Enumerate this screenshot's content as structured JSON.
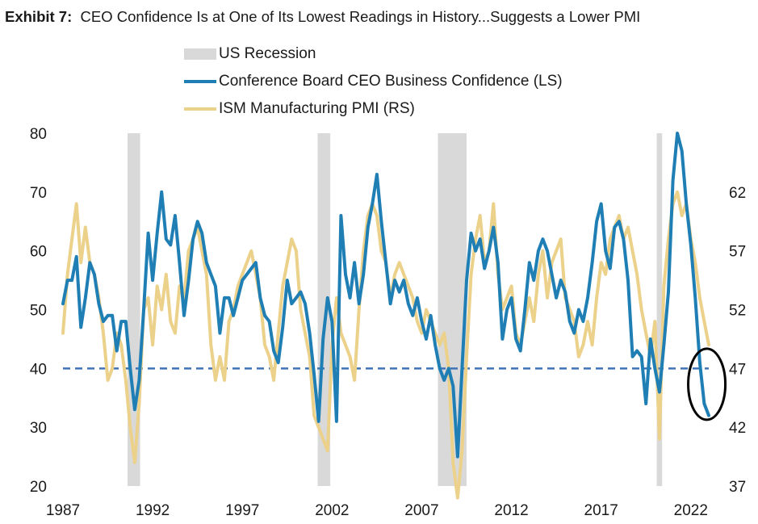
{
  "title": {
    "label": "Exhibit 7:",
    "text": "CEO Confidence Is at One of Its Lowest Readings in History...Suggests a Lower PMI"
  },
  "colors": {
    "ceo": "#1f7fb5",
    "pmi": "#ecd18b",
    "recession": "#d9d9d9",
    "reference_line": "#3f73b8",
    "annotation": "#000000"
  },
  "chart_data": {
    "type": "line",
    "legend_position": "top-left",
    "grid": false,
    "x_ticks": [
      "1987",
      "1992",
      "1997",
      "2002",
      "2007",
      "2012",
      "2017",
      "2022"
    ],
    "xlim": [
      1987,
      2023
    ],
    "left_axis": {
      "ylim": [
        20,
        80
      ],
      "ticks": [
        "20",
        "30",
        "40",
        "50",
        "60",
        "70",
        "80"
      ]
    },
    "right_axis": {
      "ylim": [
        37,
        67
      ],
      "ticks": [
        "37",
        "42",
        "47",
        "52",
        "57",
        "62"
      ]
    },
    "recessions": [
      {
        "name": "US Recession",
        "start": 1990.6,
        "end": 1991.3
      },
      {
        "name": "US Recession",
        "start": 2001.2,
        "end": 2001.9
      },
      {
        "name": "US Recession",
        "start": 2007.9,
        "end": 2009.5
      },
      {
        "name": "US Recession",
        "start": 2020.1,
        "end": 2020.4
      }
    ],
    "reference_line": {
      "axis": "left",
      "value": 40
    },
    "annotation": {
      "type": "circle",
      "x": 2022.8,
      "y_left": 38
    },
    "series": [
      {
        "name": "Conference Board CEO Business Confidence (LS)",
        "axis": "left",
        "points": [
          [
            1987.0,
            51
          ],
          [
            1987.25,
            55
          ],
          [
            1987.5,
            55
          ],
          [
            1987.75,
            59
          ],
          [
            1988.0,
            47
          ],
          [
            1988.25,
            52
          ],
          [
            1988.5,
            58
          ],
          [
            1988.75,
            56
          ],
          [
            1989.0,
            51
          ],
          [
            1989.25,
            48
          ],
          [
            1989.5,
            49
          ],
          [
            1989.75,
            49
          ],
          [
            1990.0,
            43
          ],
          [
            1990.25,
            48
          ],
          [
            1990.5,
            48
          ],
          [
            1990.75,
            40
          ],
          [
            1991.0,
            33
          ],
          [
            1991.25,
            38
          ],
          [
            1991.5,
            50
          ],
          [
            1991.75,
            63
          ],
          [
            1992.0,
            55
          ],
          [
            1992.25,
            63
          ],
          [
            1992.5,
            70
          ],
          [
            1992.75,
            62
          ],
          [
            1993.0,
            61
          ],
          [
            1993.25,
            66
          ],
          [
            1993.5,
            58
          ],
          [
            1993.75,
            49
          ],
          [
            1994.0,
            55
          ],
          [
            1994.25,
            62
          ],
          [
            1994.5,
            65
          ],
          [
            1994.75,
            63
          ],
          [
            1995.0,
            58
          ],
          [
            1995.25,
            56
          ],
          [
            1995.5,
            54
          ],
          [
            1995.75,
            46
          ],
          [
            1996.0,
            52
          ],
          [
            1996.25,
            52
          ],
          [
            1996.5,
            49
          ],
          [
            1996.75,
            52
          ],
          [
            1997.0,
            55
          ],
          [
            1997.25,
            56
          ],
          [
            1997.5,
            57
          ],
          [
            1997.75,
            58
          ],
          [
            1998.0,
            52
          ],
          [
            1998.25,
            49
          ],
          [
            1998.5,
            48
          ],
          [
            1998.75,
            43
          ],
          [
            1999.0,
            41
          ],
          [
            1999.25,
            47
          ],
          [
            1999.5,
            55
          ],
          [
            1999.75,
            51
          ],
          [
            2000.0,
            52
          ],
          [
            2000.25,
            53
          ],
          [
            2000.5,
            51
          ],
          [
            2000.75,
            46
          ],
          [
            2001.0,
            39
          ],
          [
            2001.25,
            31
          ],
          [
            2001.5,
            45
          ],
          [
            2001.75,
            52
          ],
          [
            2002.0,
            48
          ],
          [
            2002.25,
            31
          ],
          [
            2002.5,
            66
          ],
          [
            2002.75,
            56
          ],
          [
            2003.0,
            52
          ],
          [
            2003.25,
            58
          ],
          [
            2003.5,
            51
          ],
          [
            2003.75,
            56
          ],
          [
            2004.0,
            64
          ],
          [
            2004.25,
            68
          ],
          [
            2004.5,
            73
          ],
          [
            2004.75,
            65
          ],
          [
            2005.0,
            58
          ],
          [
            2005.25,
            51
          ],
          [
            2005.5,
            55
          ],
          [
            2005.75,
            53
          ],
          [
            2006.0,
            55
          ],
          [
            2006.25,
            51
          ],
          [
            2006.5,
            49
          ],
          [
            2006.75,
            52
          ],
          [
            2007.0,
            48
          ],
          [
            2007.25,
            45
          ],
          [
            2007.5,
            49
          ],
          [
            2007.75,
            44
          ],
          [
            2008.0,
            40
          ],
          [
            2008.25,
            38
          ],
          [
            2008.5,
            40
          ],
          [
            2008.75,
            37
          ],
          [
            2009.0,
            25
          ],
          [
            2009.25,
            40
          ],
          [
            2009.5,
            55
          ],
          [
            2009.75,
            63
          ],
          [
            2010.0,
            60
          ],
          [
            2010.25,
            62
          ],
          [
            2010.5,
            57
          ],
          [
            2010.75,
            60
          ],
          [
            2011.0,
            64
          ],
          [
            2011.25,
            58
          ],
          [
            2011.5,
            45
          ],
          [
            2011.75,
            50
          ],
          [
            2012.0,
            52
          ],
          [
            2012.25,
            45
          ],
          [
            2012.5,
            43
          ],
          [
            2012.75,
            50
          ],
          [
            2013.0,
            58
          ],
          [
            2013.25,
            55
          ],
          [
            2013.5,
            60
          ],
          [
            2013.75,
            62
          ],
          [
            2014.0,
            60
          ],
          [
            2014.25,
            56
          ],
          [
            2014.5,
            52
          ],
          [
            2014.75,
            55
          ],
          [
            2015.0,
            53
          ],
          [
            2015.25,
            48
          ],
          [
            2015.5,
            46
          ],
          [
            2015.75,
            50
          ],
          [
            2016.0,
            48
          ],
          [
            2016.25,
            52
          ],
          [
            2016.5,
            58
          ],
          [
            2016.75,
            65
          ],
          [
            2017.0,
            68
          ],
          [
            2017.25,
            60
          ],
          [
            2017.5,
            57
          ],
          [
            2017.75,
            64
          ],
          [
            2018.0,
            65
          ],
          [
            2018.25,
            62
          ],
          [
            2018.5,
            55
          ],
          [
            2018.75,
            42
          ],
          [
            2019.0,
            43
          ],
          [
            2019.25,
            42
          ],
          [
            2019.5,
            34
          ],
          [
            2019.75,
            45
          ],
          [
            2020.0,
            40
          ],
          [
            2020.25,
            36
          ],
          [
            2020.5,
            44
          ],
          [
            2020.75,
            53
          ],
          [
            2021.0,
            72
          ],
          [
            2021.25,
            80
          ],
          [
            2021.5,
            77
          ],
          [
            2021.75,
            68
          ],
          [
            2022.0,
            61
          ],
          [
            2022.25,
            52
          ],
          [
            2022.5,
            41
          ],
          [
            2022.75,
            34
          ],
          [
            2023.0,
            32
          ]
        ]
      },
      {
        "name": "ISM Manufacturing PMI (RS)",
        "axis": "right",
        "points": [
          [
            1987.0,
            50
          ],
          [
            1987.25,
            55
          ],
          [
            1987.5,
            58
          ],
          [
            1987.75,
            61
          ],
          [
            1988.0,
            56
          ],
          [
            1988.25,
            59
          ],
          [
            1988.5,
            56
          ],
          [
            1988.75,
            55
          ],
          [
            1989.0,
            53
          ],
          [
            1989.25,
            50
          ],
          [
            1989.5,
            46
          ],
          [
            1989.75,
            47
          ],
          [
            1990.0,
            50
          ],
          [
            1990.25,
            49
          ],
          [
            1990.5,
            46
          ],
          [
            1990.75,
            42
          ],
          [
            1991.0,
            39
          ],
          [
            1991.25,
            44
          ],
          [
            1991.5,
            52
          ],
          [
            1991.75,
            53
          ],
          [
            1992.0,
            49
          ],
          [
            1992.25,
            54
          ],
          [
            1992.5,
            52
          ],
          [
            1992.75,
            55
          ],
          [
            1993.0,
            51
          ],
          [
            1993.25,
            50
          ],
          [
            1993.5,
            54
          ],
          [
            1993.75,
            53
          ],
          [
            1994.0,
            57
          ],
          [
            1994.25,
            58
          ],
          [
            1994.5,
            59
          ],
          [
            1994.75,
            57
          ],
          [
            1995.0,
            55
          ],
          [
            1995.25,
            49
          ],
          [
            1995.5,
            46
          ],
          [
            1995.75,
            48
          ],
          [
            1996.0,
            46
          ],
          [
            1996.25,
            51
          ],
          [
            1996.5,
            52
          ],
          [
            1996.75,
            54
          ],
          [
            1997.0,
            55
          ],
          [
            1997.25,
            56
          ],
          [
            1997.5,
            57
          ],
          [
            1997.75,
            55
          ],
          [
            1998.0,
            53
          ],
          [
            1998.25,
            49
          ],
          [
            1998.5,
            48
          ],
          [
            1998.75,
            46
          ],
          [
            1999.0,
            50
          ],
          [
            1999.25,
            54
          ],
          [
            1999.5,
            56
          ],
          [
            1999.75,
            58
          ],
          [
            2000.0,
            57
          ],
          [
            2000.25,
            52
          ],
          [
            2000.5,
            50
          ],
          [
            2000.75,
            48
          ],
          [
            2001.0,
            43
          ],
          [
            2001.25,
            42
          ],
          [
            2001.5,
            41
          ],
          [
            2001.75,
            40
          ],
          [
            2002.0,
            49
          ],
          [
            2002.25,
            53
          ],
          [
            2002.5,
            50
          ],
          [
            2002.75,
            49
          ],
          [
            2003.0,
            48
          ],
          [
            2003.25,
            46
          ],
          [
            2003.5,
            52
          ],
          [
            2003.75,
            57
          ],
          [
            2004.0,
            60
          ],
          [
            2004.25,
            61
          ],
          [
            2004.5,
            60
          ],
          [
            2004.75,
            57
          ],
          [
            2005.0,
            56
          ],
          [
            2005.25,
            53
          ],
          [
            2005.5,
            55
          ],
          [
            2005.75,
            56
          ],
          [
            2006.0,
            55
          ],
          [
            2006.25,
            54
          ],
          [
            2006.5,
            53
          ],
          [
            2006.75,
            51
          ],
          [
            2007.0,
            50
          ],
          [
            2007.25,
            52
          ],
          [
            2007.5,
            51
          ],
          [
            2007.75,
            50
          ],
          [
            2008.0,
            49
          ],
          [
            2008.25,
            50
          ],
          [
            2008.5,
            47
          ],
          [
            2008.75,
            39
          ],
          [
            2009.0,
            36
          ],
          [
            2009.25,
            40
          ],
          [
            2009.5,
            48
          ],
          [
            2009.75,
            55
          ],
          [
            2010.0,
            58
          ],
          [
            2010.25,
            60
          ],
          [
            2010.5,
            56
          ],
          [
            2010.75,
            57
          ],
          [
            2011.0,
            61
          ],
          [
            2011.25,
            55
          ],
          [
            2011.5,
            52
          ],
          [
            2011.75,
            53
          ],
          [
            2012.0,
            54
          ],
          [
            2012.25,
            50
          ],
          [
            2012.5,
            49
          ],
          [
            2012.75,
            51
          ],
          [
            2013.0,
            53
          ],
          [
            2013.25,
            51
          ],
          [
            2013.5,
            55
          ],
          [
            2013.75,
            57
          ],
          [
            2014.0,
            53
          ],
          [
            2014.25,
            56
          ],
          [
            2014.5,
            57
          ],
          [
            2014.75,
            58
          ],
          [
            2015.0,
            53
          ],
          [
            2015.25,
            52
          ],
          [
            2015.5,
            51
          ],
          [
            2015.75,
            48
          ],
          [
            2016.0,
            49
          ],
          [
            2016.25,
            51
          ],
          [
            2016.5,
            49
          ],
          [
            2016.75,
            53
          ],
          [
            2017.0,
            56
          ],
          [
            2017.25,
            55
          ],
          [
            2017.5,
            58
          ],
          [
            2017.75,
            59
          ],
          [
            2018.0,
            60
          ],
          [
            2018.25,
            58
          ],
          [
            2018.5,
            59
          ],
          [
            2018.75,
            57
          ],
          [
            2019.0,
            55
          ],
          [
            2019.25,
            52
          ],
          [
            2019.5,
            50
          ],
          [
            2019.75,
            48
          ],
          [
            2020.0,
            51
          ],
          [
            2020.25,
            41
          ],
          [
            2020.5,
            54
          ],
          [
            2020.75,
            58
          ],
          [
            2021.0,
            61
          ],
          [
            2021.25,
            62
          ],
          [
            2021.5,
            60
          ],
          [
            2021.75,
            61
          ],
          [
            2022.0,
            58
          ],
          [
            2022.25,
            56
          ],
          [
            2022.5,
            53
          ],
          [
            2022.75,
            51
          ],
          [
            2023.0,
            49
          ]
        ]
      }
    ]
  }
}
